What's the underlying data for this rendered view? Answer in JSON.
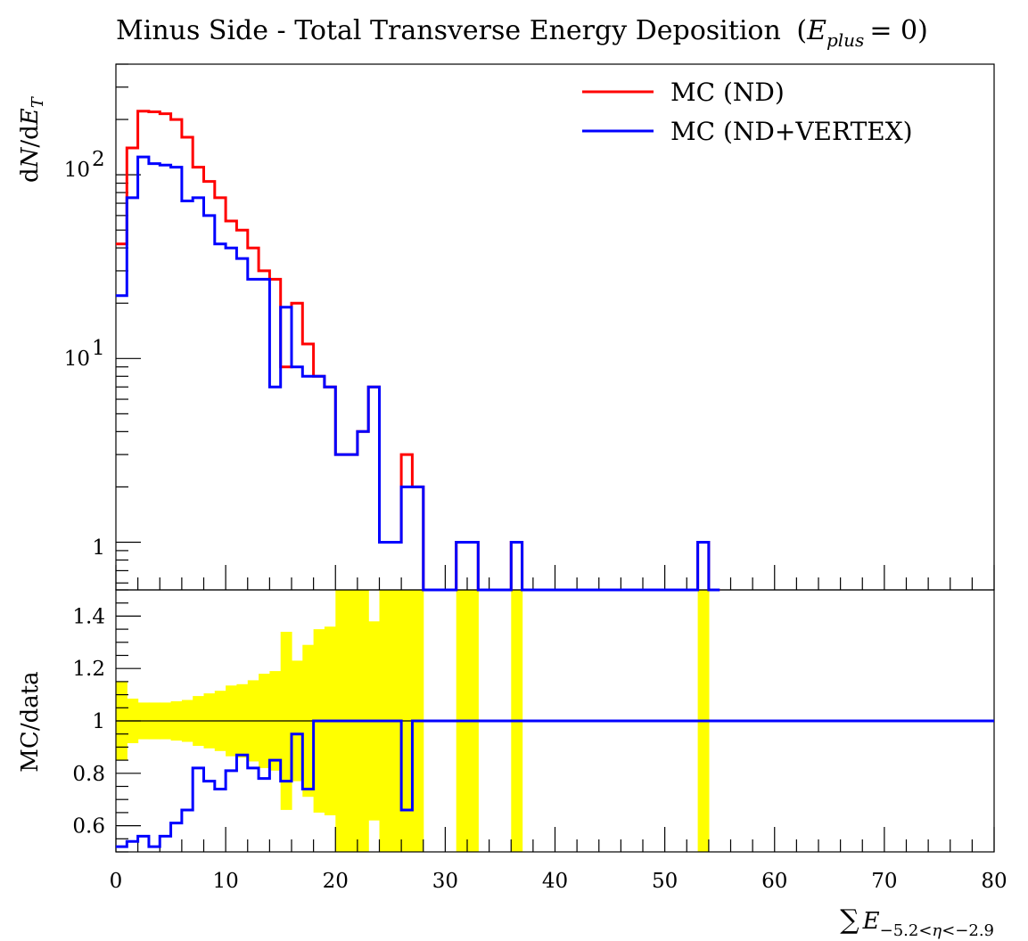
{
  "chart_data": [
    {
      "type": "histogram",
      "panel": "main",
      "title": "Minus Side - Total Transverse Energy Deposition",
      "title_math": "(E_plus = 0)",
      "ylabel": "dN/dE_T",
      "yscale": "log",
      "ylim": [
        0.55,
        400
      ],
      "xlim": [
        0,
        80
      ],
      "grid": false,
      "legend_position": "top-right",
      "y_ticks": [
        "1",
        "10^1",
        "10^2"
      ],
      "bin_width": 1,
      "series": [
        {
          "name": "MC (ND)",
          "color": "#ff0000",
          "values": [
            42,
            140,
            222,
            220,
            215,
            200,
            160,
            110,
            92,
            75,
            56,
            50,
            40,
            30,
            27,
            9,
            20,
            12,
            8,
            7,
            3,
            3,
            4,
            7,
            1,
            1,
            3,
            2,
            0,
            0,
            0,
            1,
            1,
            0,
            0,
            0,
            1,
            0,
            0,
            0,
            0,
            0,
            0,
            0,
            0,
            0,
            0,
            0,
            0,
            0,
            0,
            0,
            0,
            1,
            0
          ]
        },
        {
          "name": "MC (ND+VERTEX)",
          "color": "#0000ff",
          "values": [
            22,
            75,
            125,
            115,
            113,
            110,
            72,
            75,
            60,
            42,
            40,
            35,
            27,
            27,
            7,
            19,
            9,
            8,
            8,
            7,
            3,
            3,
            4,
            7,
            1,
            1,
            2,
            2,
            0,
            0,
            0,
            1,
            1,
            0,
            0,
            0,
            1,
            0,
            0,
            0,
            0,
            0,
            0,
            0,
            0,
            0,
            0,
            0,
            0,
            0,
            0,
            0,
            0,
            1,
            0
          ]
        }
      ]
    },
    {
      "type": "ratio",
      "panel": "ratio",
      "ylabel": "MC/data",
      "xlabel": "ΣE_{-5.2<η<-2.9}",
      "xlim": [
        0,
        80
      ],
      "ylim": [
        0.5,
        1.5
      ],
      "y_ticks": [
        "0.6",
        "0.8",
        "1",
        "1.2",
        "1.4"
      ],
      "x_ticks": [
        "0",
        "10",
        "20",
        "30",
        "40",
        "50",
        "60",
        "70",
        "80"
      ],
      "reference_line": 1,
      "band_color": "#ffff00",
      "band_halfwidth": [
        0.15,
        0.085,
        0.07,
        0.07,
        0.07,
        0.075,
        0.08,
        0.095,
        0.105,
        0.115,
        0.135,
        0.14,
        0.155,
        0.18,
        0.19,
        0.34,
        0.23,
        0.29,
        0.35,
        0.36,
        0.6,
        0.6,
        0.6,
        0.38,
        1.0,
        1.0,
        0.6,
        0.7,
        null,
        null,
        null,
        1.0,
        1.0,
        null,
        null,
        null,
        1.0,
        null,
        null,
        null,
        null,
        null,
        null,
        null,
        null,
        null,
        null,
        null,
        null,
        null,
        null,
        null,
        null,
        1.0,
        null
      ],
      "series": [
        {
          "name": "MC (ND+VERTEX)",
          "color": "#0000ff",
          "values": [
            0.52,
            0.54,
            0.56,
            0.52,
            0.56,
            0.61,
            0.66,
            0.82,
            0.77,
            0.74,
            0.81,
            0.87,
            0.82,
            0.78,
            0.85,
            0.77,
            0.95,
            0.74,
            1.0,
            1.0,
            1.0,
            1.0,
            1.0,
            1.0,
            1.0,
            1.0,
            0.66,
            1.0,
            1.0,
            1.0,
            1.0,
            1.0,
            1.0,
            1.0,
            1.0,
            1.0,
            1.0,
            1.0,
            1.0,
            1.0,
            1.0,
            1.0,
            1.0,
            1.0,
            1.0,
            1.0,
            1.0,
            1.0,
            1.0,
            1.0,
            1.0,
            1.0,
            1.0,
            1.0,
            1.0,
            1.0,
            1.0,
            1.0,
            1.0,
            1.0,
            1.0,
            1.0,
            1.0,
            1.0,
            1.0,
            1.0,
            1.0,
            1.0,
            1.0,
            1.0,
            1.0,
            1.0,
            1.0,
            1.0,
            1.0,
            1.0,
            1.0,
            1.0,
            1.0,
            1.0
          ]
        }
      ]
    }
  ]
}
